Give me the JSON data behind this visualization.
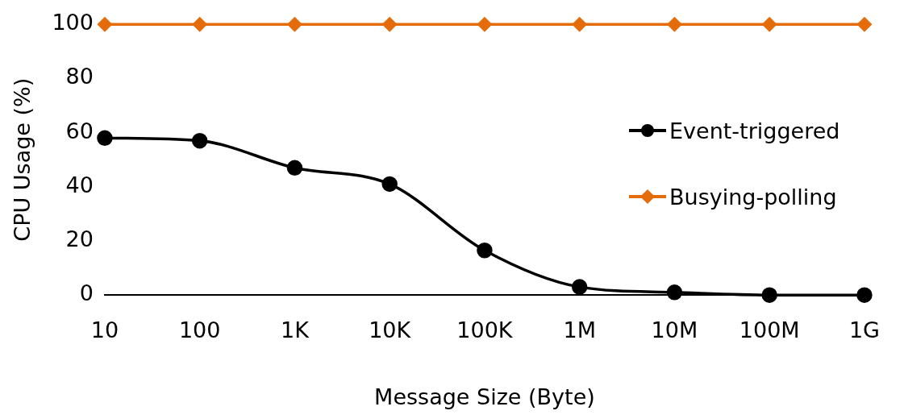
{
  "chart_data": {
    "type": "line",
    "xlabel": "Message Size (Byte)",
    "ylabel": "CPU Usage (%)",
    "categories": [
      "10",
      "100",
      "1K",
      "10K",
      "100K",
      "1M",
      "10M",
      "100M",
      "1G"
    ],
    "series": [
      {
        "name": "Event-triggered",
        "color": "#000000",
        "marker": "circle",
        "values": [
          58,
          57,
          47,
          41,
          16.5,
          3,
          1,
          0,
          0
        ]
      },
      {
        "name": "Busying-polling",
        "color": "#e46c0a",
        "marker": "diamond",
        "values": [
          100,
          100,
          100,
          100,
          100,
          100,
          100,
          100,
          100
        ]
      }
    ],
    "ylim": [
      0,
      100
    ],
    "yticks": [
      0,
      20,
      40,
      60,
      80,
      100
    ],
    "grid": false,
    "legend": "right"
  }
}
